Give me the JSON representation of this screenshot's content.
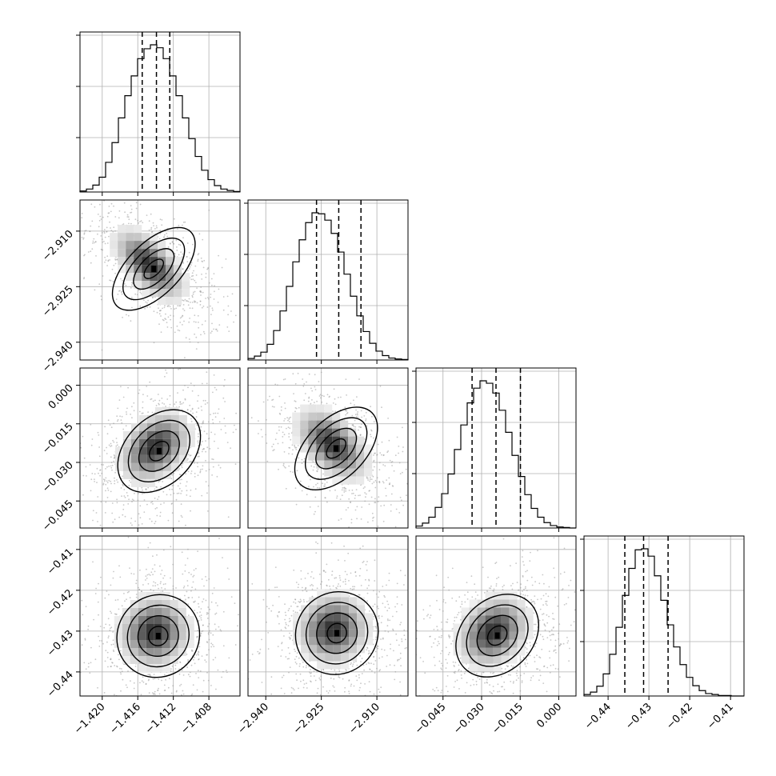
{
  "chart_data": {
    "type": "corner",
    "n_params": 4,
    "grid": true,
    "colors": {
      "line": "#000000",
      "grid": "#b0b0b0",
      "scatter": "#9a9a9a",
      "background": "#ffffff"
    },
    "params": [
      {
        "range": [
          -1.4225,
          -1.4045
        ],
        "ticks": [
          -1.42,
          -1.416,
          -1.412,
          -1.408
        ],
        "tick_labels": [
          "−1.420",
          "−1.416",
          "−1.412",
          "−1.408"
        ],
        "quantiles": [
          -1.4155,
          -1.4139,
          -1.4124
        ]
      },
      {
        "range": [
          -2.9448,
          -2.9016
        ],
        "ticks": [
          -2.94,
          -2.925,
          -2.91
        ],
        "tick_labels": [
          "−2.940",
          "−2.925",
          "−2.910"
        ],
        "quantiles": [
          -2.9263,
          -2.9203,
          -2.9143
        ]
      },
      {
        "range": [
          -0.0555,
          0.0067
        ],
        "ticks": [
          -0.045,
          -0.03,
          -0.015,
          0.0
        ],
        "tick_labels": [
          "−0.045",
          "−0.030",
          "−0.015",
          "0.000"
        ],
        "quantiles": [
          -0.0337,
          -0.0244,
          -0.0149
        ]
      },
      {
        "range": [
          -0.4459,
          -0.4067
        ],
        "ticks": [
          -0.44,
          -0.43,
          -0.42,
          -0.41
        ],
        "tick_labels": [
          "−0.44",
          "−0.43",
          "−0.42",
          "−0.41"
        ],
        "quantiles": [
          -0.4359,
          -0.4313,
          -0.4253
        ]
      }
    ],
    "histograms": [
      {
        "param": 0,
        "counts": [
          2,
          6,
          14,
          30,
          60,
          100,
          150,
          195,
          235,
          270,
          290,
          298,
          292,
          270,
          235,
          195,
          150,
          108,
          72,
          44,
          25,
          13,
          6,
          3,
          1
        ]
      },
      {
        "param": 1,
        "counts": [
          3,
          8,
          16,
          32,
          60,
          100,
          150,
          200,
          245,
          280,
          300,
          298,
          285,
          258,
          220,
          175,
          130,
          90,
          58,
          34,
          18,
          9,
          4,
          2,
          1
        ]
      },
      {
        "param": 2,
        "counts": [
          4,
          10,
          22,
          42,
          70,
          110,
          160,
          210,
          255,
          285,
          300,
          295,
          275,
          240,
          195,
          148,
          105,
          68,
          40,
          22,
          11,
          5,
          2,
          1,
          0
        ]
      },
      {
        "param": 3,
        "counts": [
          3,
          8,
          20,
          45,
          85,
          140,
          205,
          260,
          298,
          300,
          285,
          245,
          195,
          145,
          100,
          64,
          38,
          21,
          11,
          5,
          3,
          1,
          1,
          0,
          0
        ]
      }
    ],
    "pairs": [
      {
        "x_param": 0,
        "y_param": 1,
        "correlation": -0.6,
        "peak": [
          -1.4142,
          -2.9202
        ]
      },
      {
        "x_param": 0,
        "y_param": 2,
        "correlation": 0.35,
        "peak": [
          -1.4136,
          -0.0256
        ]
      },
      {
        "x_param": 1,
        "y_param": 2,
        "correlation": -0.5,
        "peak": [
          -2.921,
          -0.0246
        ]
      },
      {
        "x_param": 0,
        "y_param": 3,
        "correlation": 0.05,
        "peak": [
          -1.4137,
          -0.4312
        ]
      },
      {
        "x_param": 1,
        "y_param": 3,
        "correlation": 0.05,
        "peak": [
          -2.9208,
          -0.4305
        ]
      },
      {
        "x_param": 2,
        "y_param": 3,
        "correlation": 0.25,
        "peak": [
          -0.0239,
          -0.4311
        ]
      }
    ]
  }
}
